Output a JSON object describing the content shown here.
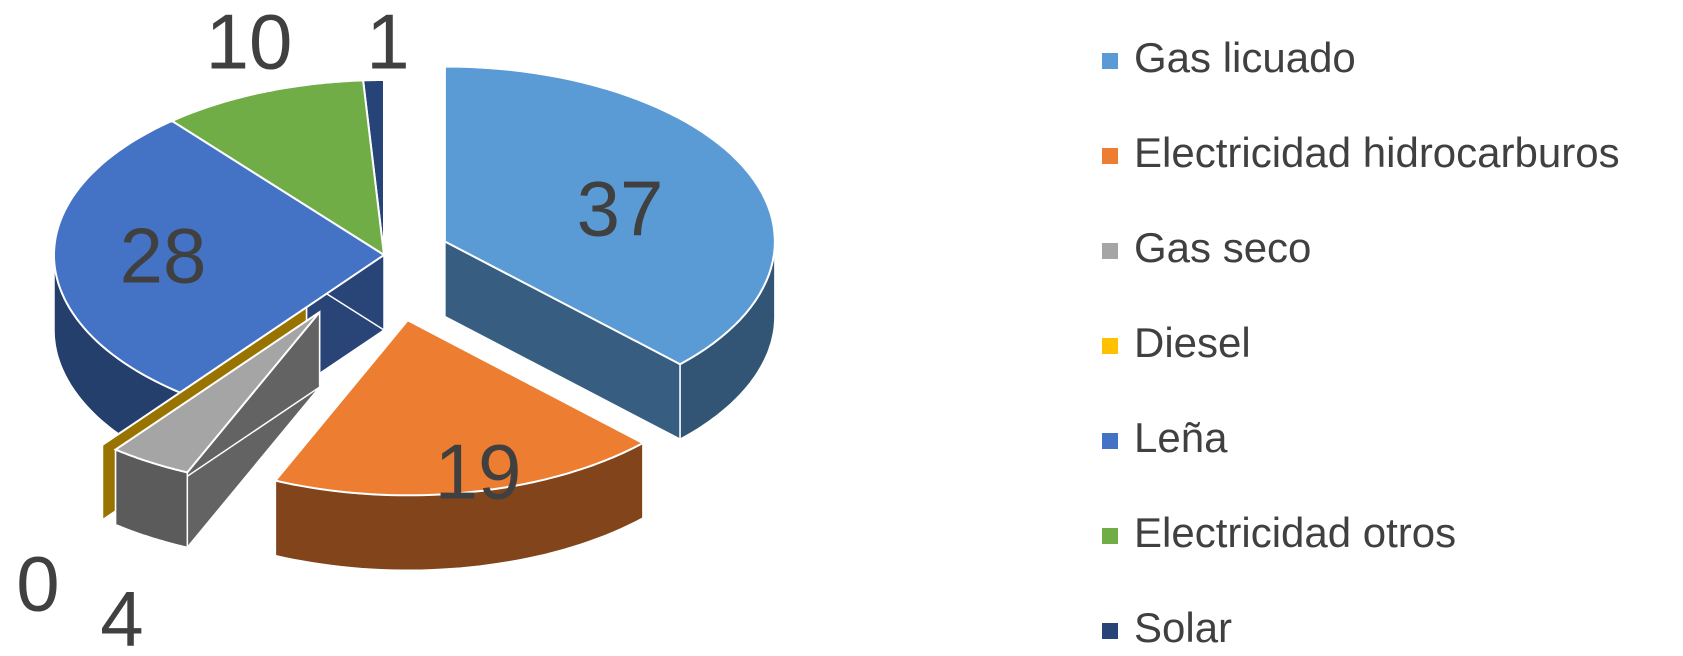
{
  "chart_data": {
    "type": "pie3d",
    "categories": [
      "Gas licuado",
      "Electricidad hidrocarburos",
      "Gas seco",
      "Diesel",
      "Leña",
      "Electricidad otros",
      "Solar"
    ],
    "values": [
      37,
      19,
      4,
      0,
      28,
      10,
      1
    ],
    "colors": [
      "#5b9bd5",
      "#ed7d31",
      "#a5a5a5",
      "#ffc000",
      "#4472c4",
      "#70ad47",
      "#264478"
    ],
    "legend": "right"
  }
}
